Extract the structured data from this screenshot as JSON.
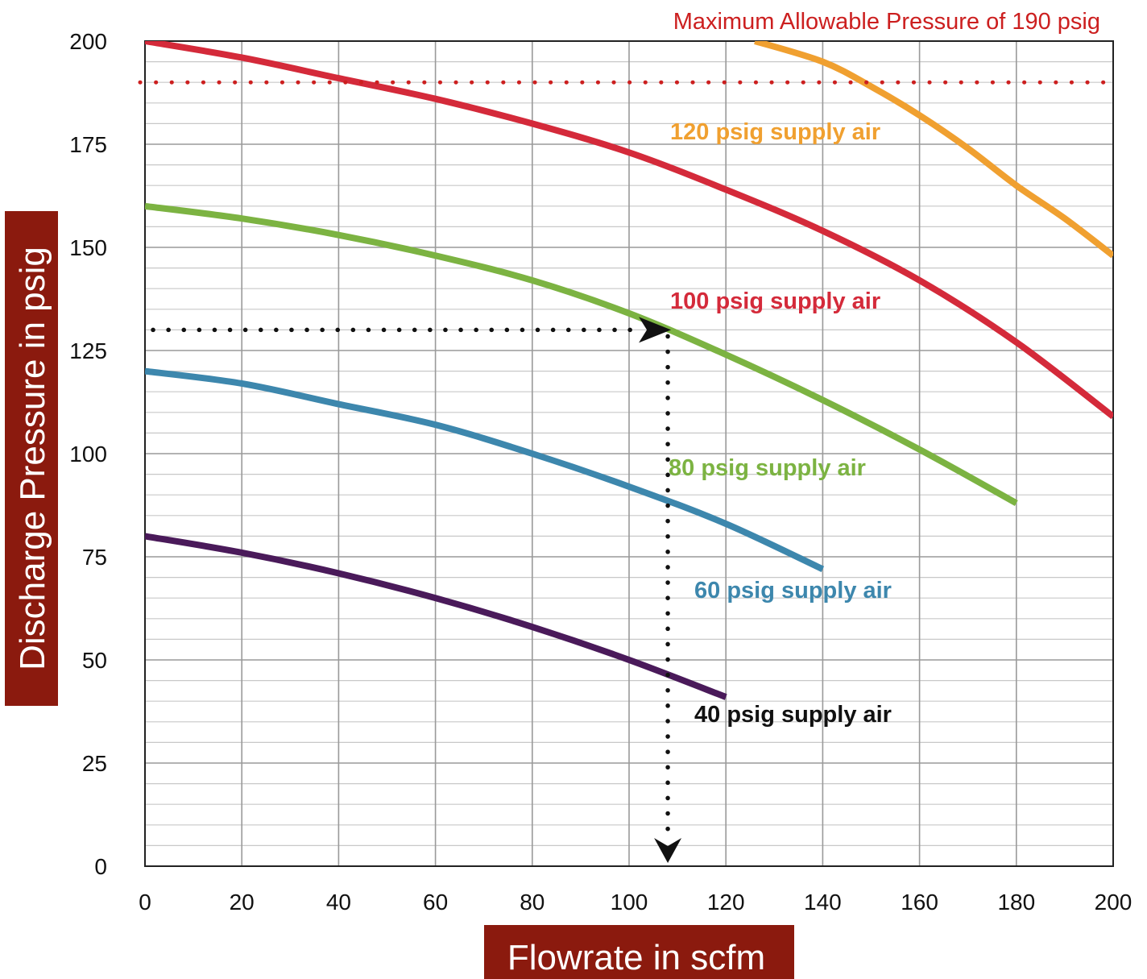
{
  "chart_data": {
    "type": "line",
    "xlabel": "Flowrate in scfm",
    "ylabel": "Discharge Pressure in psig",
    "xlim": [
      0,
      200
    ],
    "ylim": [
      0,
      200
    ],
    "x_ticks": [
      0,
      20,
      40,
      60,
      80,
      100,
      120,
      140,
      160,
      180,
      200
    ],
    "y_ticks": [
      0,
      25,
      50,
      75,
      100,
      125,
      150,
      175,
      200
    ],
    "grid": true,
    "axis_title_bg": "#8b1a0e",
    "series": [
      {
        "name": "120 psig supply air",
        "color": "#f0a030",
        "x": [
          126,
          140,
          150,
          160,
          170,
          180,
          190,
          200
        ],
        "y": [
          200,
          195,
          189,
          182,
          174,
          165,
          157,
          148
        ]
      },
      {
        "name": "100 psig supply air",
        "color": "#d42a3a",
        "x": [
          0,
          20,
          40,
          60,
          80,
          100,
          120,
          140,
          160,
          180,
          200
        ],
        "y": [
          200,
          196,
          191,
          186,
          180,
          173,
          164,
          154,
          142,
          127,
          109
        ]
      },
      {
        "name": "80 psig supply air",
        "color": "#7cb342",
        "x": [
          0,
          20,
          40,
          60,
          80,
          100,
          120,
          140,
          160,
          180
        ],
        "y": [
          160,
          157,
          153,
          148,
          142,
          134,
          124,
          113,
          101,
          88
        ]
      },
      {
        "name": "60 psig supply air",
        "color": "#3d87ad",
        "x": [
          0,
          20,
          40,
          60,
          80,
          100,
          120,
          140
        ],
        "y": [
          120,
          117,
          112,
          107,
          100,
          92,
          83,
          72
        ]
      },
      {
        "name": "40 psig supply air",
        "color": "#4a1a5a",
        "x": [
          0,
          20,
          40,
          60,
          80,
          100,
          120
        ],
        "y": [
          80,
          76,
          71,
          65,
          58,
          50,
          41
        ]
      }
    ],
    "reference_line": {
      "label": "Maximum Allowable Pressure of 190 psig",
      "y": 190,
      "color": "#cc1f1f",
      "style": "dotted"
    },
    "operating_point": {
      "x": 108,
      "y": 130,
      "style": "dotted",
      "color": "#111111"
    }
  }
}
